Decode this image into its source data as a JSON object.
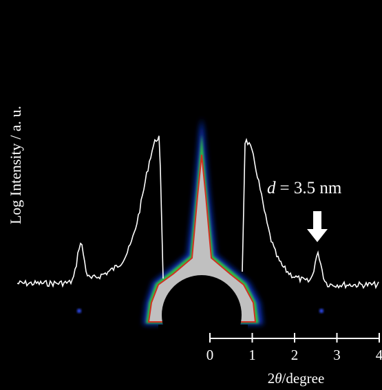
{
  "y_axis_label": "Log Intensity / a. u.",
  "annotation": {
    "symbol": "d",
    "text": "= 3.5 nm"
  },
  "x_axis": {
    "ticks": [
      0,
      1,
      2,
      3,
      4
    ],
    "label": {
      "prefix": "2",
      "symbol": "θ",
      "suffix": "/degree"
    }
  }
}
